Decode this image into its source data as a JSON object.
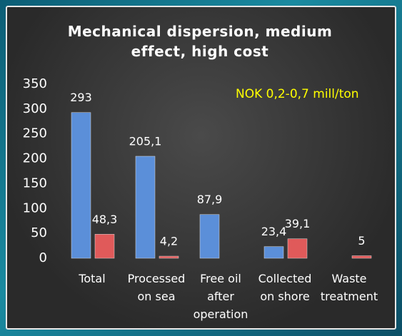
{
  "chart_data": {
    "type": "bar",
    "title": "Mechanical dispersion, medium effect, high cost",
    "annotation": "NOK 0,2-0,7 mill/ton",
    "categories": [
      "Total",
      "Processed on sea",
      "Free oil after operation",
      "Collected on shore",
      "Waste treatment"
    ],
    "series": [
      {
        "color": "#5b8fd9",
        "values": [
          293,
          205.1,
          87.9,
          23.4,
          null
        ],
        "value_labels": [
          "293",
          "205,1",
          "87,9",
          "23,4",
          null
        ]
      },
      {
        "color": "#e05a5a",
        "values": [
          48.3,
          4.2,
          null,
          39.1,
          5
        ],
        "value_labels": [
          "48,3",
          "4,2",
          null,
          "39,1",
          "5"
        ]
      }
    ],
    "ylim": [
      0,
      350
    ],
    "yticks": [
      0,
      50,
      100,
      150,
      200,
      250,
      300,
      350
    ],
    "grid": false
  }
}
